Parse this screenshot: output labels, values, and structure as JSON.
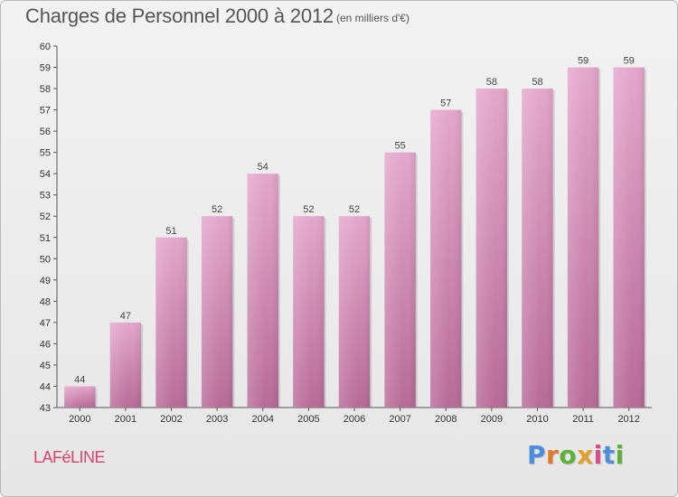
{
  "chart_data": {
    "type": "bar",
    "title": "Charges de Personnel 2000 à 2012",
    "subtitle": "(en milliers d'€)",
    "categories": [
      "2000",
      "2001",
      "2002",
      "2003",
      "2004",
      "2005",
      "2006",
      "2007",
      "2008",
      "2009",
      "2010",
      "2011",
      "2012"
    ],
    "values": [
      44,
      47,
      51,
      52,
      54,
      52,
      52,
      55,
      57,
      58,
      58,
      59,
      59
    ],
    "ylim": [
      43,
      60
    ],
    "yticks": [
      43,
      44,
      45,
      46,
      47,
      48,
      49,
      50,
      51,
      52,
      53,
      54,
      55,
      56,
      57,
      58,
      59,
      60
    ],
    "grid": false,
    "bar_color": "#d98fbb"
  },
  "footer": {
    "location": "LAFéLINE",
    "brand": "Proxiti",
    "brand_colors": [
      "#4a8fd8",
      "#e07a2a",
      "#5cb03c",
      "#e0a02a",
      "#d84a8a",
      "#4a8fd8",
      "#5cb03c"
    ]
  }
}
